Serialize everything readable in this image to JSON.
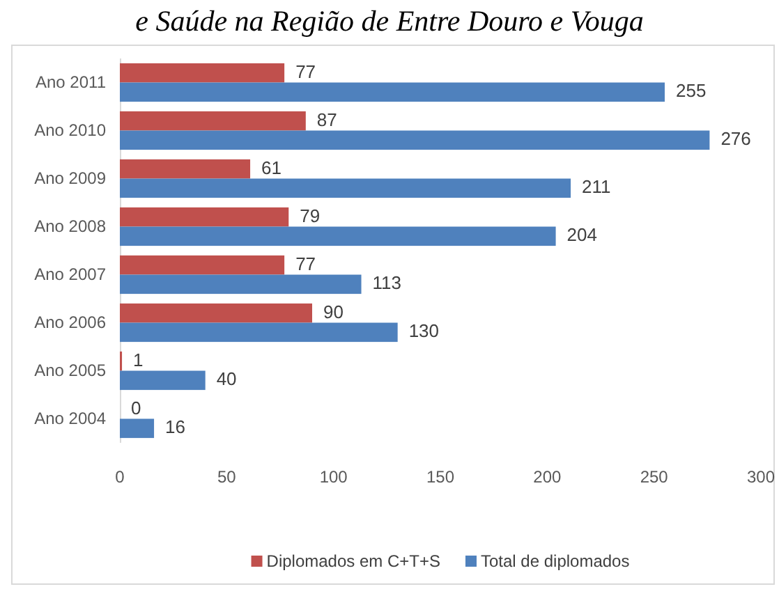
{
  "chart_data": {
    "type": "bar",
    "orientation": "horizontal",
    "title": "e Saúde na Região de Entre Douro e Vouga",
    "categories": [
      "Ano 2011",
      "Ano 2010",
      "Ano 2009",
      "Ano 2008",
      "Ano 2007",
      "Ano 2006",
      "Ano 2005",
      "Ano 2004"
    ],
    "series": [
      {
        "name": "Diplomados em C+T+S",
        "color": "#c0504d",
        "values": [
          77,
          87,
          61,
          79,
          77,
          90,
          1,
          0
        ]
      },
      {
        "name": "Total de diplomados",
        "color": "#4f81bd",
        "values": [
          255,
          276,
          211,
          204,
          113,
          130,
          40,
          16
        ]
      }
    ],
    "xlim": [
      0,
      300
    ],
    "xticks": [
      0,
      50,
      100,
      150,
      200,
      250,
      300
    ],
    "data_labels": true,
    "legend": "bottom"
  }
}
